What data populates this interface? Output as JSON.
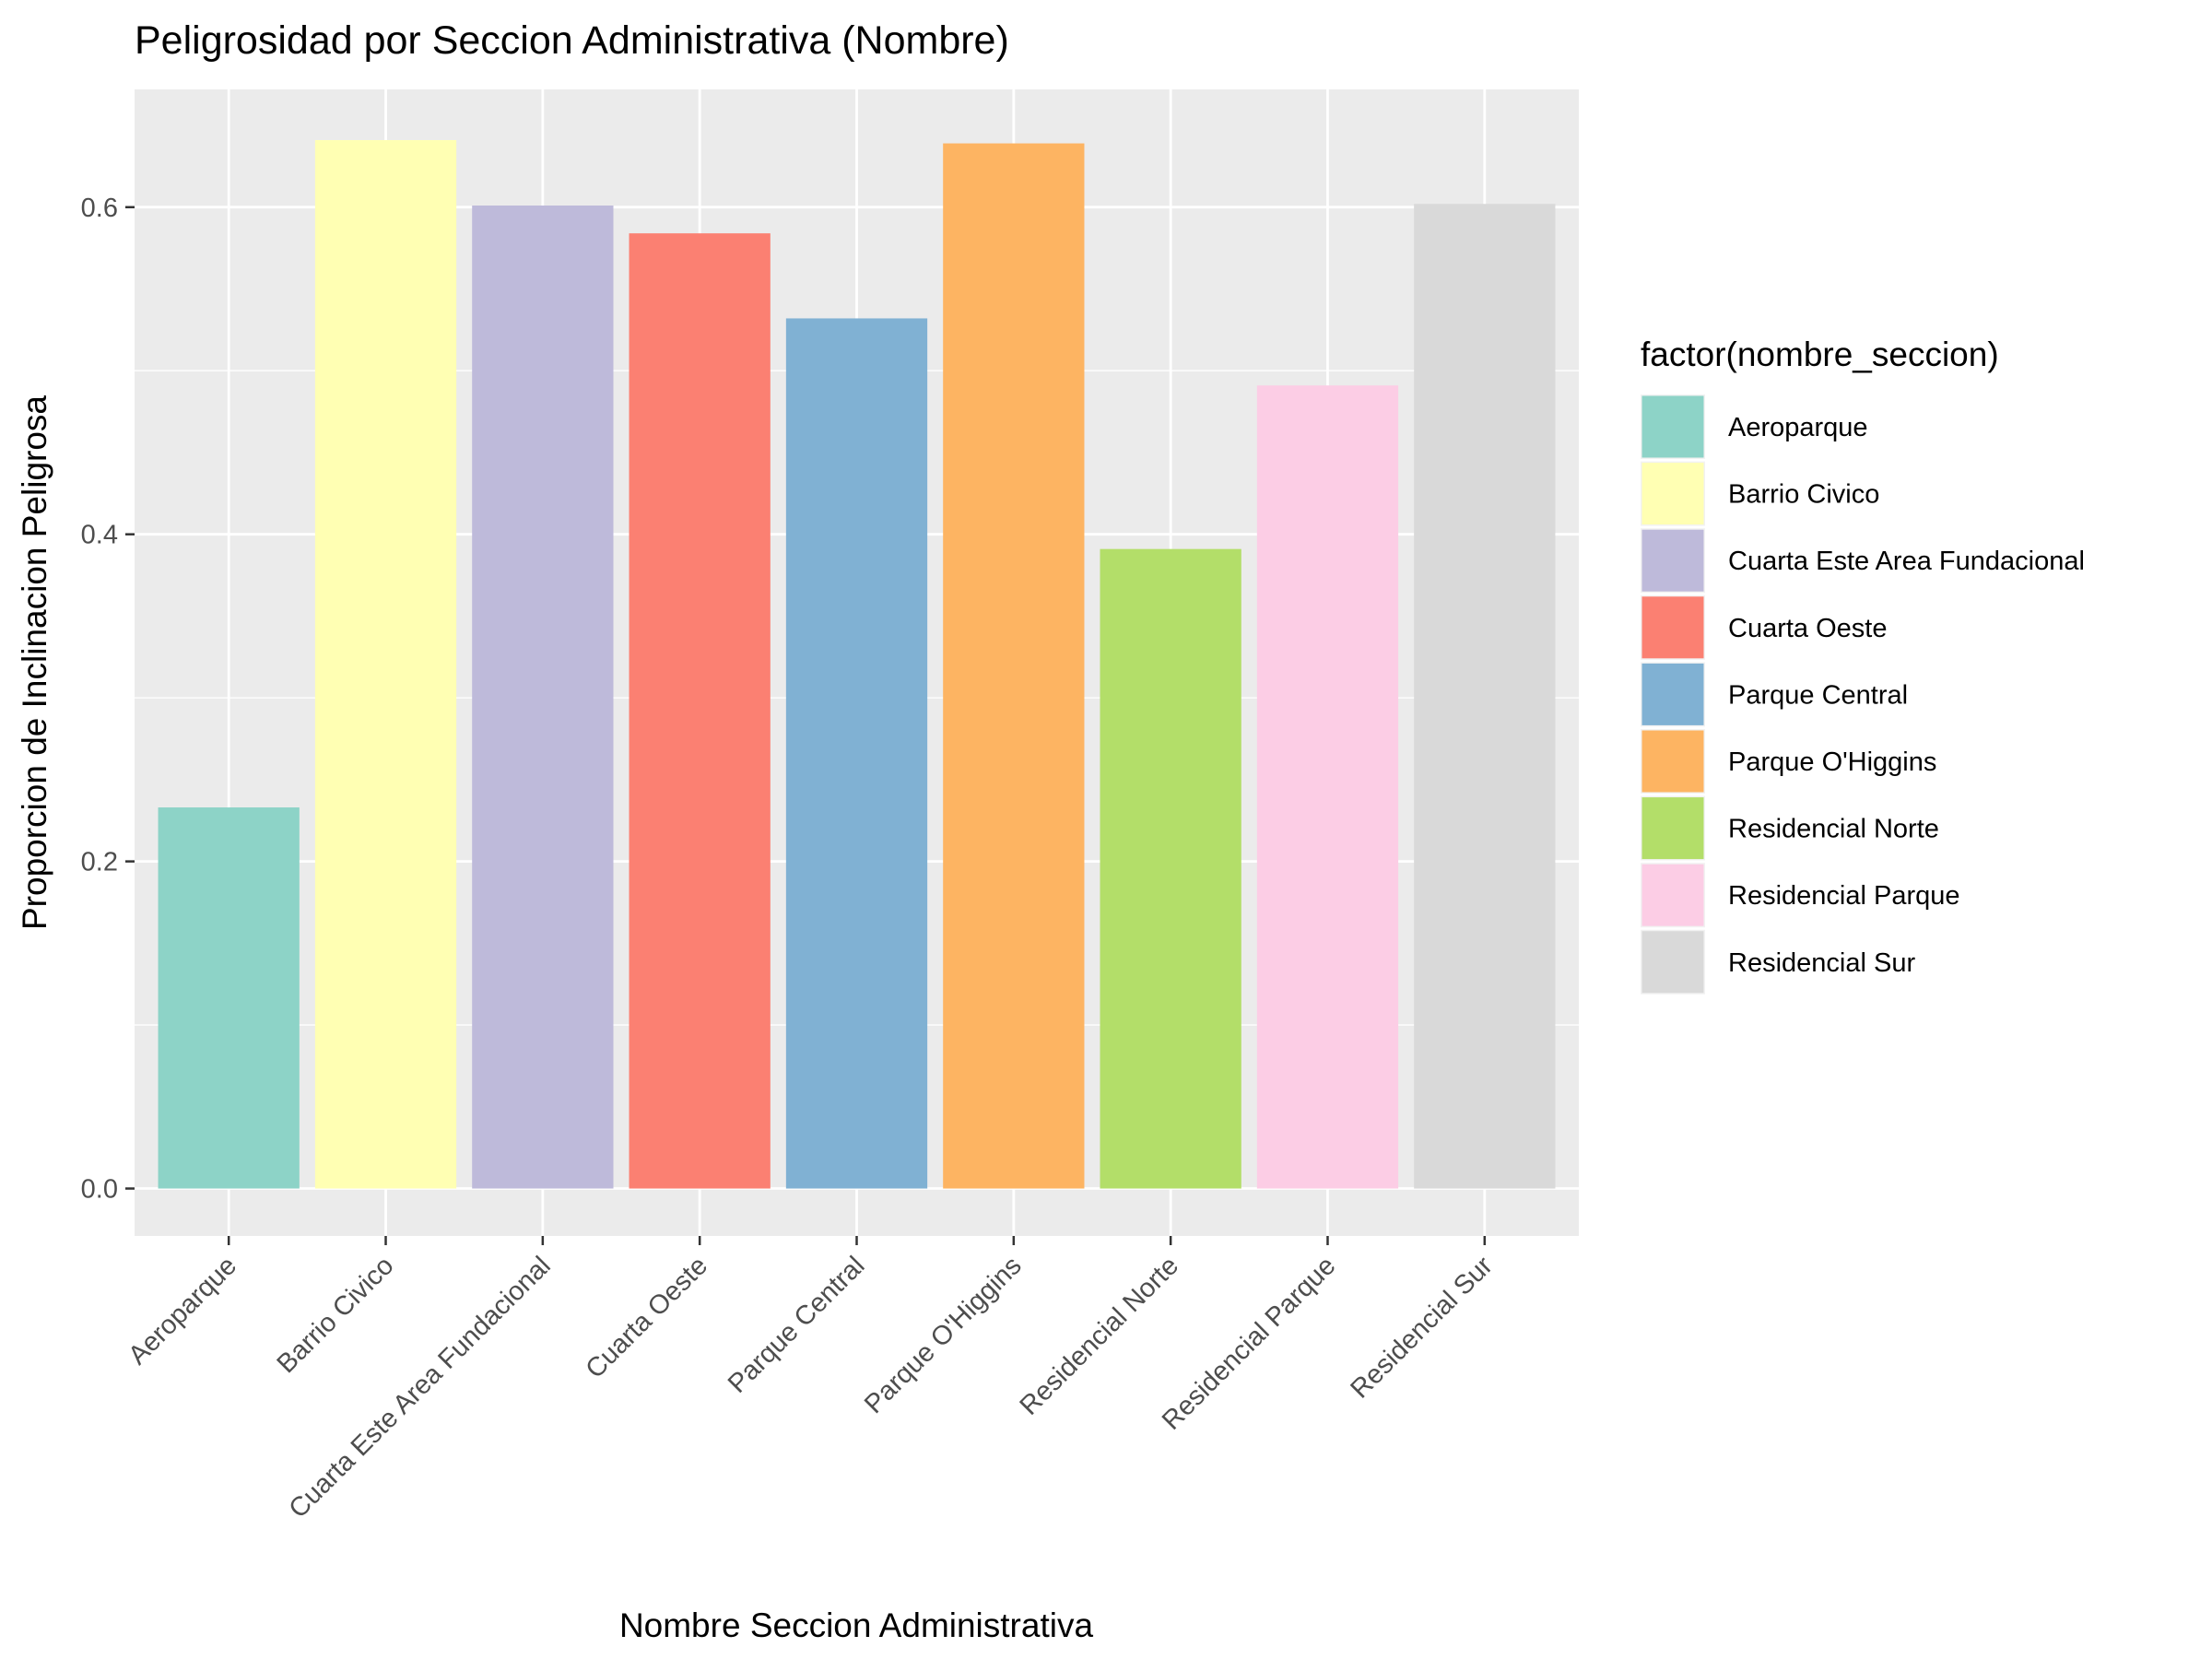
{
  "chart_data": {
    "type": "bar",
    "title": "Peligrosidad por Seccion Administrativa (Nombre)",
    "xlabel": "Nombre Seccion Administrativa",
    "ylabel": "Proporcion de Inclinacion Peligrosa",
    "ylim": [
      -0.029,
      0.672
    ],
    "yticks": [
      0.0,
      0.2,
      0.4,
      0.6
    ],
    "ytick_labels": [
      "0.0",
      "0.2",
      "0.4",
      "0.6"
    ],
    "grid": true,
    "legend_position": "right",
    "legend_title": "factor(nombre_seccion)",
    "categories": [
      "Aeroparque",
      "Barrio Civico",
      "Cuarta Este Area Fundacional",
      "Cuarta Oeste",
      "Parque Central",
      "Parque O'Higgins",
      "Residencial Norte",
      "Residencial Parque",
      "Residencial Sur"
    ],
    "values": [
      0.233,
      0.641,
      0.601,
      0.584,
      0.532,
      0.639,
      0.391,
      0.491,
      0.602
    ],
    "colors": [
      "#8DD3C7",
      "#FFFFB3",
      "#BEBADA",
      "#FB8072",
      "#80B1D3",
      "#FDB462",
      "#B3DE69",
      "#FCCDE5",
      "#D9D9D9"
    ],
    "panel_background": "#EBEBEB",
    "grid_color": "#FFFFFF"
  }
}
